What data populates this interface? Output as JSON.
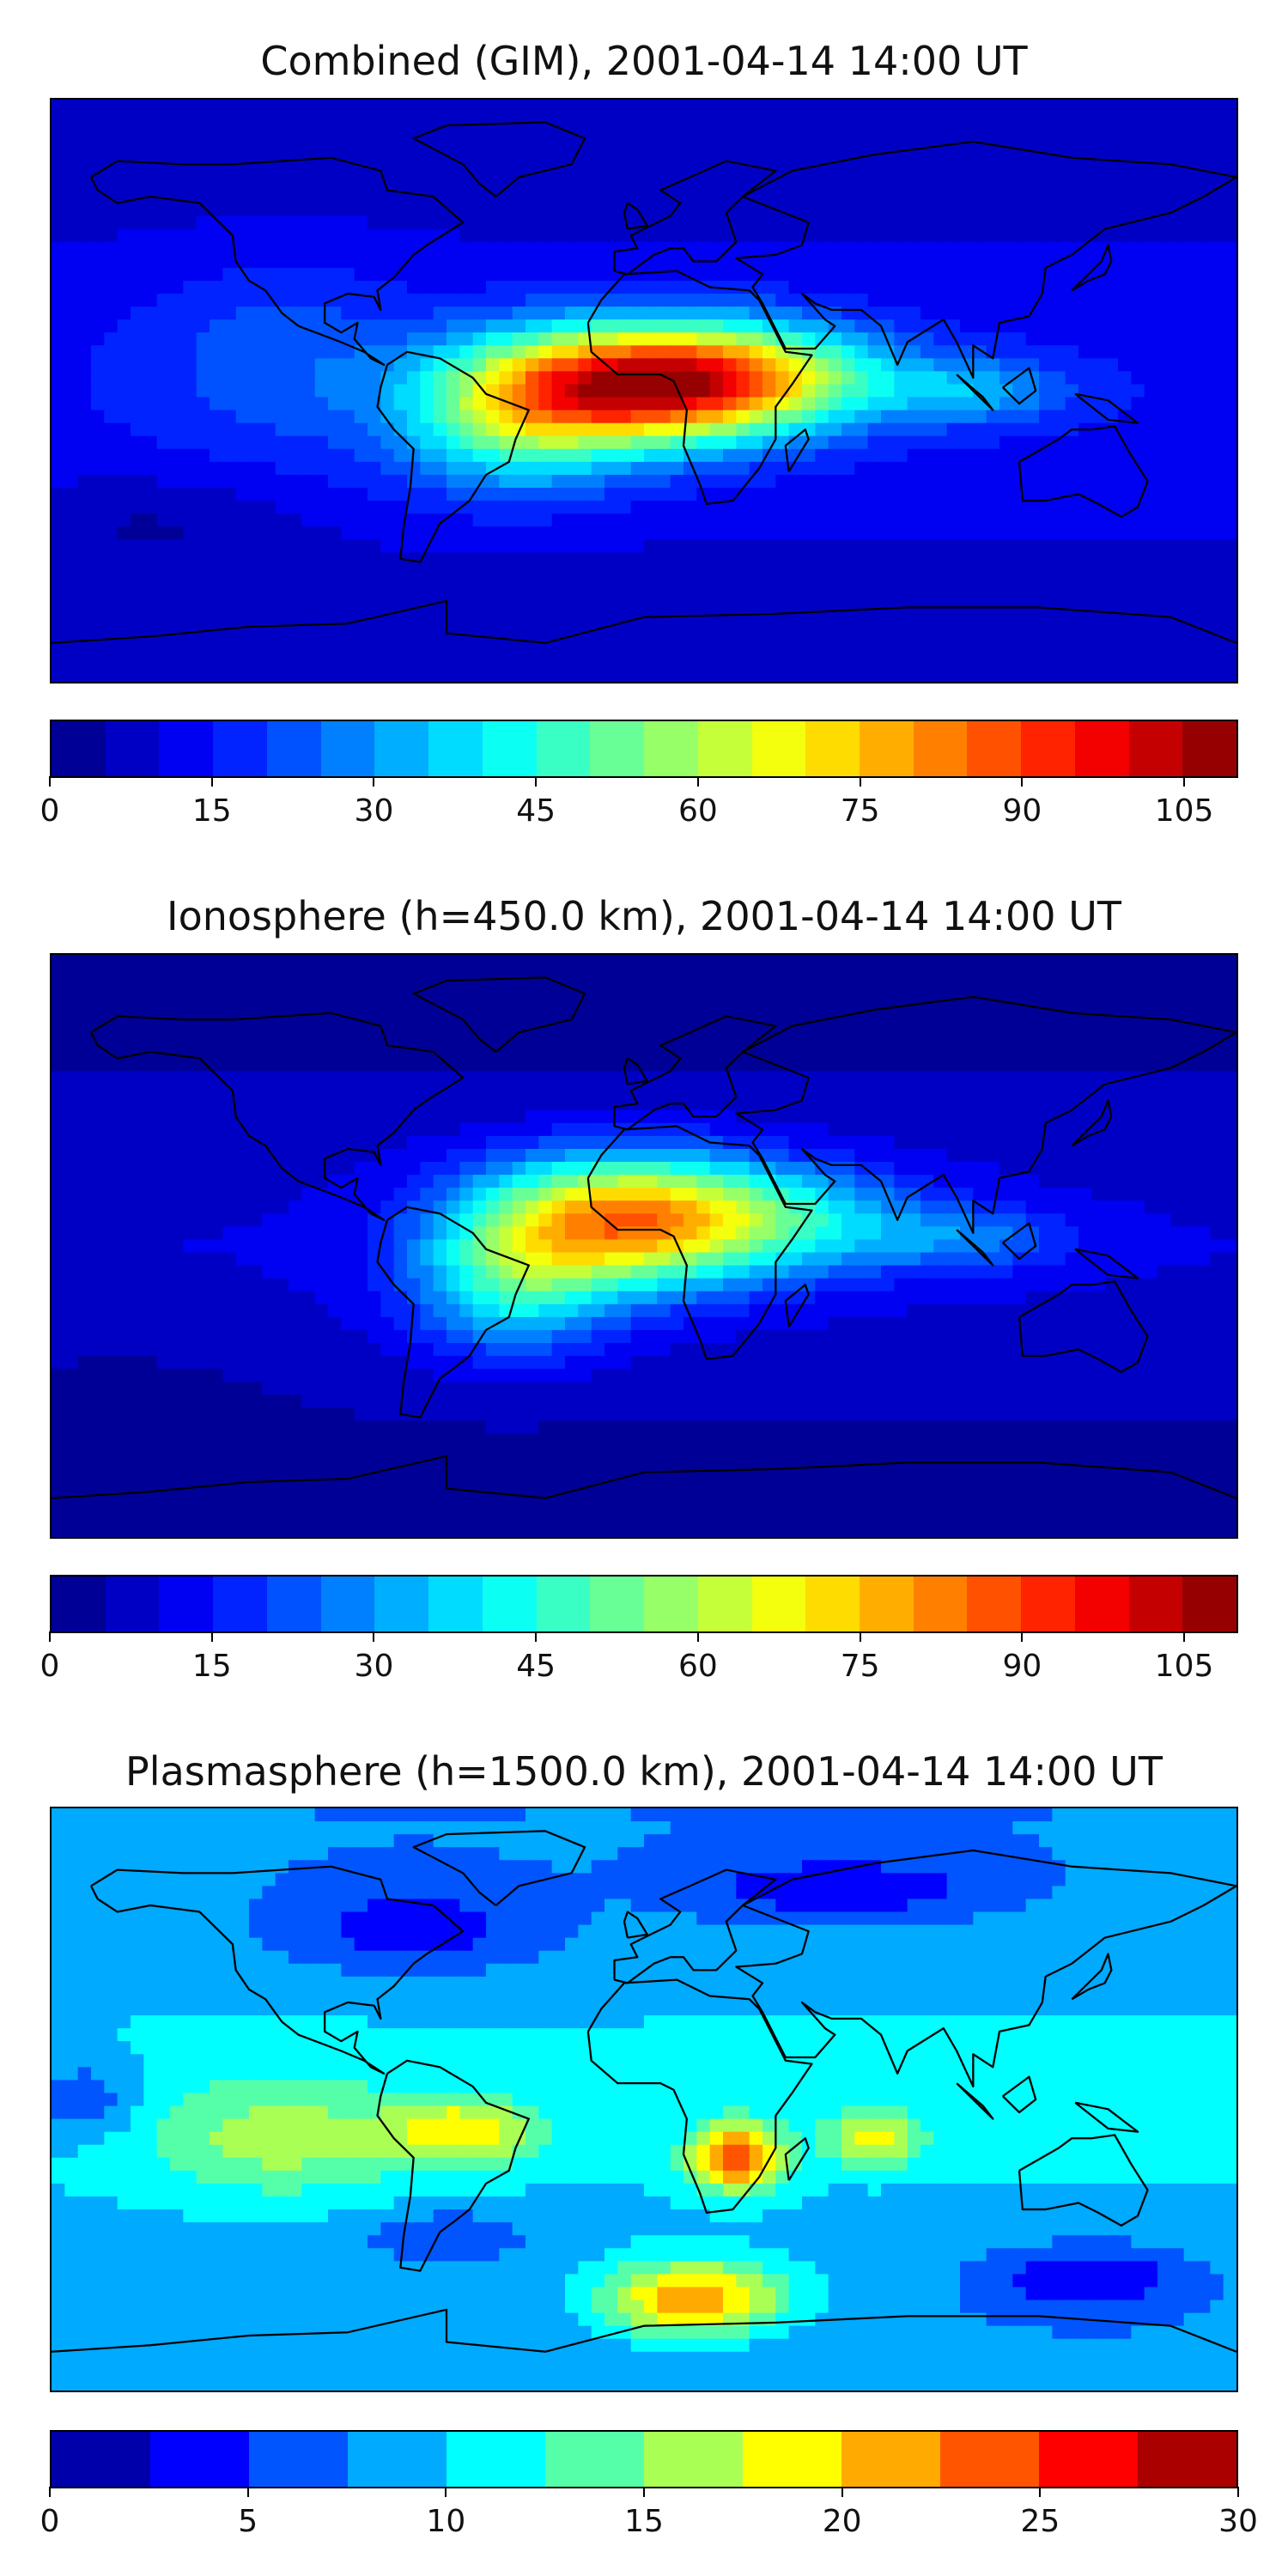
{
  "panels": [
    {
      "title": "Combined (GIM), 2001-04-14 14:00 UT",
      "colorbar": {
        "min": 0,
        "max": 110,
        "ticks": [
          "0",
          "15",
          "30",
          "45",
          "60",
          "75",
          "90",
          "105"
        ],
        "tick_values": [
          0,
          15,
          30,
          45,
          60,
          75,
          90,
          105
        ],
        "levels": 22
      },
      "field": "combined"
    },
    {
      "title": "Ionosphere  (h=450.0 km), 2001-04-14 14:00 UT",
      "colorbar": {
        "min": 0,
        "max": 110,
        "ticks": [
          "0",
          "15",
          "30",
          "45",
          "60",
          "75",
          "90",
          "105"
        ],
        "tick_values": [
          0,
          15,
          30,
          45,
          60,
          75,
          90,
          105
        ],
        "levels": 22
      },
      "field": "ionosphere"
    },
    {
      "title": "Plasmasphere (h=1500.0 km), 2001-04-14 14:00 UT",
      "colorbar": {
        "min": 0,
        "max": 30,
        "ticks": [
          "0",
          "5",
          "10",
          "15",
          "20",
          "25",
          "30"
        ],
        "tick_values": [
          0,
          5,
          10,
          15,
          20,
          25,
          30
        ],
        "levels": 12
      },
      "field": "plasmasphere"
    }
  ],
  "colormap": "jet",
  "projection": "plate-carree",
  "coastlines": true
}
